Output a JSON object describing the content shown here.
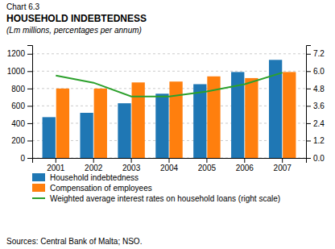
{
  "chart_data": {
    "type": "bar",
    "title": "HOUSEHOLD INDEBTEDNESS",
    "subtitle": "(Lm millions, percentages per annum)",
    "annotations": [
      "Chart 6.3",
      "Sources: Central Bank of Malta; NSO."
    ],
    "categories": [
      "2001",
      "2002",
      "2003",
      "2004",
      "2005",
      "2006",
      "2007"
    ],
    "series": [
      {
        "name": "Household indebtedness",
        "type": "bar",
        "values": [
          470,
          520,
          630,
          740,
          850,
          990,
          1130
        ]
      },
      {
        "name": "Compensation of employees",
        "type": "bar",
        "values": [
          800,
          800,
          870,
          880,
          940,
          920,
          990
        ]
      },
      {
        "name": "Weighted average interest rates on household loans (right scale)",
        "type": "line",
        "axis": "y2",
        "values": [
          5.7,
          5.2,
          4.25,
          4.25,
          4.6,
          5.1,
          5.9
        ]
      }
    ],
    "ylim": [
      0,
      1300
    ],
    "yticks": [
      0,
      200,
      400,
      600,
      800,
      1000,
      1200
    ],
    "y2lim": [
      0.0,
      7.8
    ],
    "y2ticks": [
      {
        "value": 0,
        "label": "0.0"
      },
      1.2,
      2.4,
      3.6,
      4.8,
      {
        "value": 6,
        "label": "6.0"
      },
      7.2
    ],
    "grid": true,
    "legend": "bottom"
  }
}
